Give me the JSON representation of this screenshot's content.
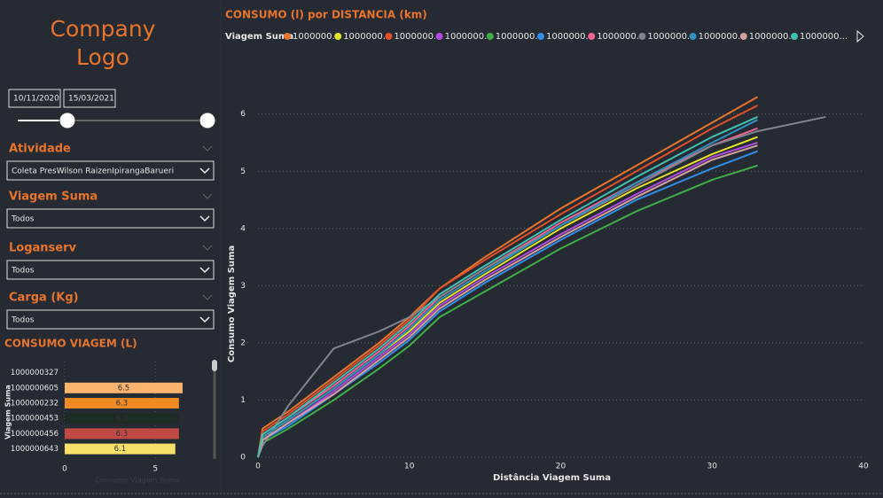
{
  "logo": "Company Logo",
  "date_slicer": {
    "start": "10/11/2020",
    "end": "15/03/2021"
  },
  "filters": [
    {
      "label": "Atividade",
      "value": "Coleta PresWilson RaizenIpirangaBarueri"
    },
    {
      "label": "Viagem Suma",
      "value": "Todos"
    },
    {
      "label": "Loganserv",
      "value": "Todos"
    },
    {
      "label": "Carga (Kg)",
      "value": "Todos"
    }
  ],
  "chart_data": [
    {
      "type": "line",
      "title": "CONSUMO (l) por DISTANCIA (km)",
      "legend_title": "Viagem Suma",
      "x_label": "Distância Viagem Suma",
      "y_label": "Consumo Viagem Suma",
      "x": [
        0,
        0.3,
        2,
        5,
        8,
        10,
        12,
        15,
        20,
        25,
        30,
        33,
        37.5
      ],
      "xlim": [
        0,
        40
      ],
      "xticks": [
        0,
        10,
        20,
        30,
        40
      ],
      "ylim": [
        0,
        6.6
      ],
      "yticks": [
        0,
        1,
        2,
        3,
        4,
        5,
        6
      ],
      "grid": true,
      "series": [
        {
          "name": "1000000...",
          "color": "#e8742c",
          "values": [
            0,
            0.5,
            0.8,
            1.4,
            2.0,
            2.45,
            2.95,
            3.5,
            4.35,
            5.1,
            5.85,
            6.3,
            null
          ]
        },
        {
          "name": "1000000...",
          "color": "#e5e22c",
          "values": [
            0,
            0.35,
            0.65,
            1.2,
            1.8,
            2.2,
            2.7,
            3.2,
            4.0,
            4.7,
            5.3,
            5.6,
            null
          ]
        },
        {
          "name": "1000000...",
          "color": "#e0502a",
          "values": [
            0,
            0.45,
            0.75,
            1.35,
            1.95,
            2.4,
            2.95,
            3.45,
            4.25,
            5.0,
            5.75,
            6.15,
            null
          ]
        },
        {
          "name": "1000000...",
          "color": "#b24be0",
          "values": [
            0,
            0.3,
            0.6,
            1.15,
            1.75,
            2.15,
            2.65,
            3.15,
            3.9,
            4.6,
            5.25,
            5.5,
            null
          ]
        },
        {
          "name": "1000000...",
          "color": "#3fae49",
          "values": [
            0,
            0.25,
            0.5,
            1.0,
            1.55,
            1.95,
            2.45,
            2.9,
            3.65,
            4.3,
            4.85,
            5.1,
            null
          ]
        },
        {
          "name": "1000000...",
          "color": "#2f8fe6",
          "values": [
            0,
            0.3,
            0.55,
            1.1,
            1.65,
            2.05,
            2.55,
            3.05,
            3.8,
            4.5,
            5.05,
            5.35,
            null
          ]
        },
        {
          "name": "1000000...",
          "color": "#f06292",
          "values": [
            0,
            0.4,
            0.7,
            1.25,
            1.85,
            2.3,
            2.8,
            3.3,
            4.1,
            4.8,
            5.45,
            5.75,
            null
          ]
        },
        {
          "name": "1000000...",
          "color": "#80868f",
          "values": [
            0,
            0.2,
            0.9,
            1.9,
            2.2,
            2.45,
            2.8,
            3.3,
            4.05,
            4.75,
            5.45,
            5.7,
            5.95
          ]
        },
        {
          "name": "1000000...",
          "color": "#3090c0",
          "values": [
            0,
            0.35,
            0.65,
            1.2,
            1.8,
            2.25,
            2.75,
            3.25,
            4.05,
            4.8,
            5.5,
            5.9,
            null
          ]
        },
        {
          "name": "1000000...",
          "color": "#d4a0a0",
          "values": [
            0,
            0.3,
            0.6,
            1.1,
            1.7,
            2.1,
            2.6,
            3.1,
            3.85,
            4.55,
            5.2,
            5.45,
            null
          ]
        },
        {
          "name": "1000000...",
          "color": "#3fc0b0",
          "values": [
            0,
            0.4,
            0.7,
            1.3,
            1.9,
            2.35,
            2.85,
            3.35,
            4.15,
            4.9,
            5.6,
            5.95,
            null
          ]
        }
      ]
    },
    {
      "type": "hbar",
      "title": "CONSUMO VIAGEM (L)",
      "y_label": "Viagem Suma",
      "x_label": "Consumo Viagem Suma",
      "categories": [
        "1000000327",
        "1000000605",
        "1000000232",
        "1000000453",
        "1000000456",
        "1000000643"
      ],
      "values": [
        null,
        6.5,
        6.3,
        6.3,
        6.3,
        6.1
      ],
      "colors": [
        "#f5a35c",
        "#fbb46e",
        "#f08a24",
        "#1e2a24",
        "#c04a46",
        "#f7e06a"
      ],
      "xlim": [
        0,
        6.7
      ],
      "xticks": [
        0,
        5
      ]
    }
  ]
}
